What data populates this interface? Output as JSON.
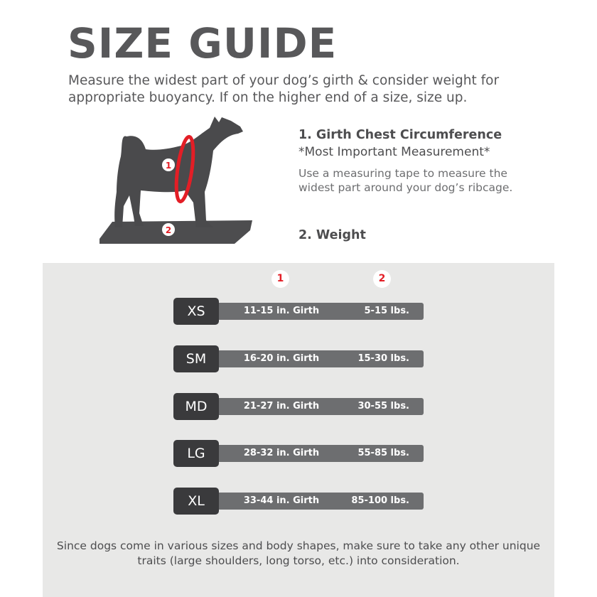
{
  "title": "SIZE GUIDE",
  "intro": "Measure the widest part of your dog’s girth & consider weight for appropriate buoyancy. If on the higher end of a size, size up.",
  "measurements": {
    "girth_title": "1. Girth Chest Circumference",
    "girth_note": "*Most Important Measurement*",
    "girth_desc": "Use a measuring tape to measure the widest part around your dog’s ribcage.",
    "weight_title": "2. Weight"
  },
  "markers": {
    "one": "1",
    "two": "2"
  },
  "colors": {
    "accent": "#e31e26",
    "badge": "#3a3a3c",
    "bar": "#6d6e70",
    "panel": "#e8e8e7"
  },
  "sizes": [
    {
      "size": "XS",
      "girth": "11-15 in. Girth",
      "weight": "5-15 lbs."
    },
    {
      "size": "SM",
      "girth": "16-20 in. Girth",
      "weight": "15-30 lbs."
    },
    {
      "size": "MD",
      "girth": "21-27 in. Girth",
      "weight": "30-55 lbs."
    },
    {
      "size": "LG",
      "girth": "28-32 in. Girth",
      "weight": "55-85 lbs."
    },
    {
      "size": "XL",
      "girth": "33-44 in. Girth",
      "weight": "85-100 lbs."
    }
  ],
  "footer": "Since dogs come in various sizes and body shapes, make sure to take any other unique traits (large shoulders, long torso, etc.) into consideration."
}
